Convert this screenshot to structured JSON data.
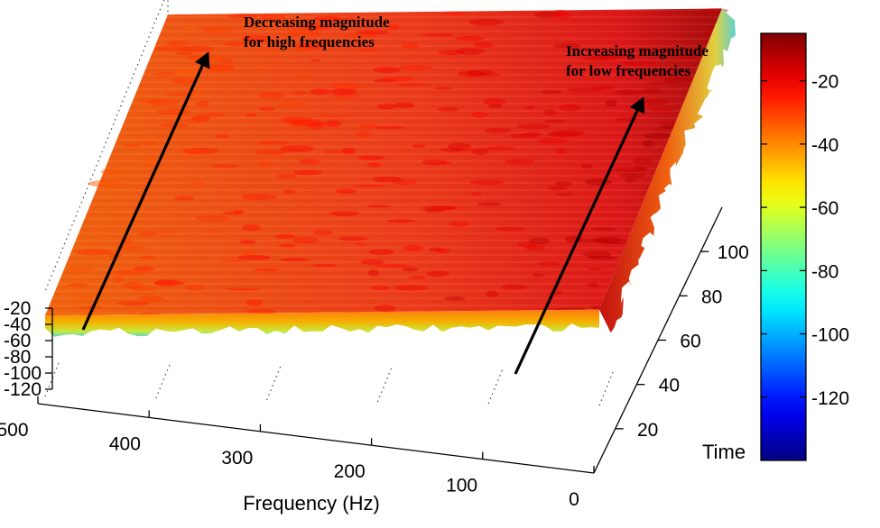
{
  "chart_data": {
    "type": "surface",
    "title": "",
    "xlabel": "Frequency (Hz)",
    "ylabel": "Time",
    "zlabel": "",
    "x_ticks": [
      0,
      100,
      200,
      300,
      400,
      500
    ],
    "y_ticks": [
      20,
      40,
      60,
      80,
      100
    ],
    "z_ticks": [
      -20,
      -40,
      -60,
      -80,
      -100,
      -120
    ],
    "xlim": [
      0,
      500
    ],
    "ylim": [
      0,
      120
    ],
    "zlim": [
      -140,
      0
    ],
    "colormap": "jet",
    "colorbar": {
      "ticks": [
        -20,
        -40,
        -60,
        -80,
        -100,
        -120
      ],
      "range": [
        -140,
        -5
      ]
    },
    "surface_level_db": {
      "low_frequency_edge": -12,
      "high_frequency_edge": -32,
      "typical_midband": -25
    },
    "annotations": [
      {
        "id": "high",
        "lines": [
          "Decreasing magnitude",
          "for high frequencies"
        ]
      },
      {
        "id": "low",
        "lines": [
          "Increasing magnitude",
          "for low frequencies"
        ]
      }
    ],
    "grid": true
  }
}
